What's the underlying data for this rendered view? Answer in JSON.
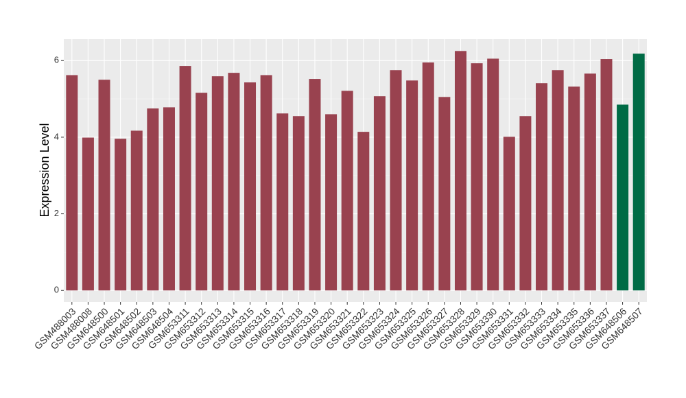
{
  "chart_data": {
    "type": "bar",
    "y_label": "Expression Level",
    "categories": [
      "GSM488003",
      "GSM488008",
      "GSM648500",
      "GSM648501",
      "GSM648502",
      "GSM648503",
      "GSM648504",
      "GSM653311",
      "GSM653312",
      "GSM653313",
      "GSM653314",
      "GSM653315",
      "GSM653316",
      "GSM653317",
      "GSM653318",
      "GSM653319",
      "GSM653320",
      "GSM653321",
      "GSM653322",
      "GSM653323",
      "GSM653324",
      "GSM653325",
      "GSM653326",
      "GSM653327",
      "GSM653328",
      "GSM653329",
      "GSM653330",
      "GSM653331",
      "GSM653332",
      "GSM653333",
      "GSM653334",
      "GSM653335",
      "GSM653336",
      "GSM653337",
      "GSM648506",
      "GSM648507"
    ],
    "values": [
      5.62,
      3.99,
      5.5,
      3.96,
      4.17,
      4.75,
      4.78,
      5.86,
      5.16,
      5.59,
      5.68,
      5.43,
      5.62,
      4.62,
      4.55,
      5.52,
      4.6,
      5.21,
      4.14,
      5.07,
      5.75,
      5.48,
      5.95,
      5.05,
      6.25,
      5.93,
      6.05,
      4.01,
      4.55,
      5.41,
      5.75,
      5.32,
      5.66,
      6.04,
      4.85,
      6.18
    ],
    "colors": [
      "#99424f",
      "#99424f",
      "#99424f",
      "#99424f",
      "#99424f",
      "#99424f",
      "#99424f",
      "#99424f",
      "#99424f",
      "#99424f",
      "#99424f",
      "#99424f",
      "#99424f",
      "#99424f",
      "#99424f",
      "#99424f",
      "#99424f",
      "#99424f",
      "#99424f",
      "#99424f",
      "#99424f",
      "#99424f",
      "#99424f",
      "#99424f",
      "#99424f",
      "#99424f",
      "#99424f",
      "#99424f",
      "#99424f",
      "#99424f",
      "#99424f",
      "#99424f",
      "#99424f",
      "#99424f",
      "#006b45",
      "#006b45"
    ],
    "ylim": [
      -0.3,
      6.56
    ],
    "yticks": [
      0,
      2,
      4,
      6
    ],
    "grid": true
  }
}
